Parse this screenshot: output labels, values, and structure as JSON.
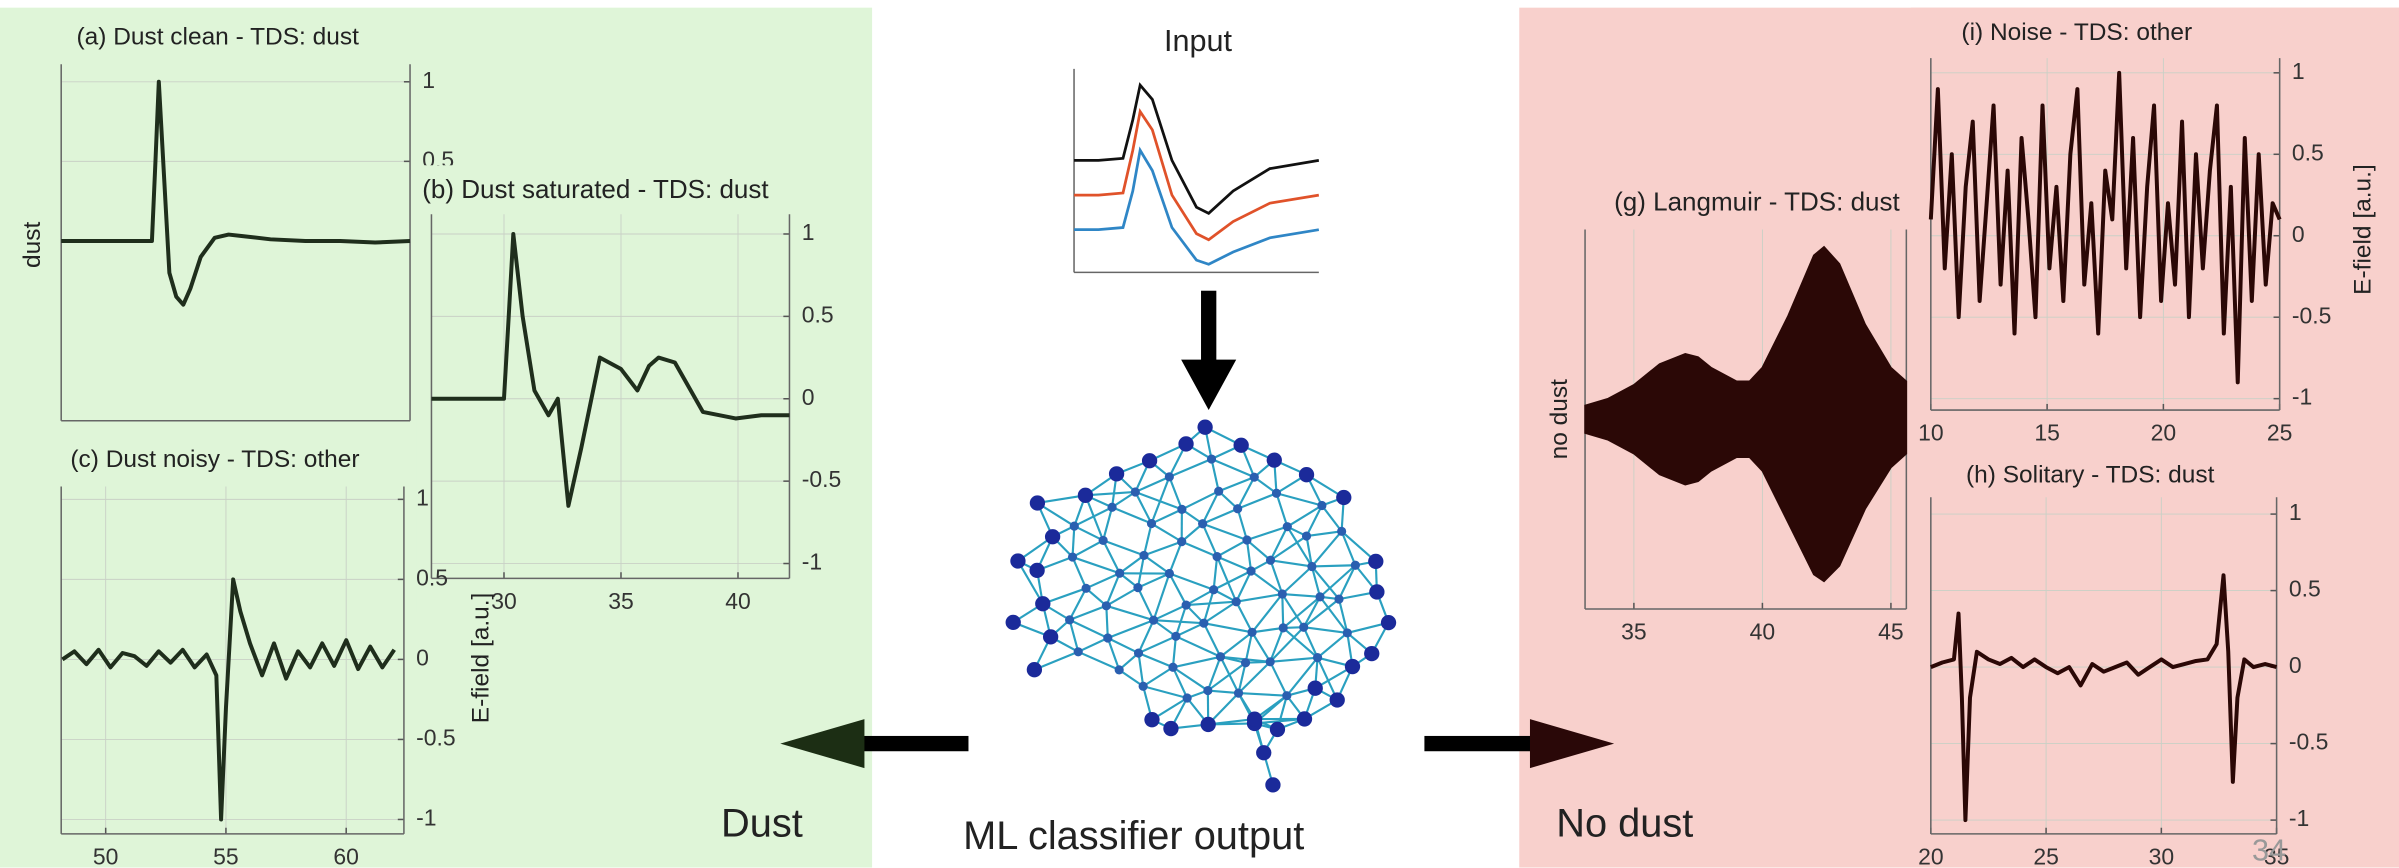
{
  "labels": {
    "dust": "Dust",
    "no_dust": "No dust",
    "classifier": "ML classifier output",
    "page_number": "34"
  },
  "chart_data": [
    {
      "type": "line",
      "title": "Input",
      "x": [
        0,
        1,
        2,
        2.4,
        2.7,
        3.2,
        4,
        5,
        5.5,
        6.5,
        8,
        10
      ],
      "xlim": [
        0,
        10
      ],
      "ylim": [
        0,
        10
      ],
      "series": [
        {
          "color": "#111111",
          "values": [
            5.5,
            5.5,
            5.6,
            7.5,
            9.2,
            8.5,
            5.5,
            3.2,
            2.9,
            4.0,
            5.1,
            5.5
          ]
        },
        {
          "color": "#e0522a",
          "values": [
            3.8,
            3.8,
            3.9,
            6,
            7.9,
            7,
            3.8,
            1.9,
            1.6,
            2.5,
            3.4,
            3.8
          ]
        },
        {
          "color": "#2f86c6",
          "values": [
            2.1,
            2.1,
            2.2,
            4,
            6,
            5,
            2.2,
            0.6,
            0.4,
            1,
            1.7,
            2.1
          ]
        }
      ]
    },
    {
      "type": "line",
      "title": "(a) Dust clean - TDS: dust",
      "ylabel": "dust",
      "color": "#1f2e1c",
      "x": [
        0,
        10,
        20,
        26,
        27,
        28,
        29,
        31,
        33,
        35,
        37,
        40,
        44,
        48,
        52,
        60,
        70,
        80,
        90,
        100
      ],
      "values": [
        0,
        0,
        0,
        0,
        0.5,
        1,
        0.6,
        -0.2,
        -0.35,
        -0.4,
        -0.3,
        -0.1,
        0.02,
        0.04,
        0.03,
        0.01,
        0,
        0,
        -0.01,
        0
      ],
      "xlim": [
        0,
        100
      ],
      "ylim": [
        -1.13,
        1.11
      ],
      "yticks": [
        0.5,
        1
      ],
      "grid": true
    },
    {
      "type": "line",
      "title": "(b) Dust saturated - TDS: dust",
      "color": "#1f2e1c",
      "x": [
        26.9,
        28,
        30,
        30.2,
        30.4,
        30.8,
        31.3,
        31.9,
        32.3,
        32.75,
        33.3,
        34.1,
        35,
        35.7,
        36.2,
        36.6,
        37.3,
        38.5,
        39.9,
        41,
        42.2
      ],
      "values": [
        0,
        0,
        0,
        0.5,
        1,
        0.5,
        0.05,
        -0.1,
        0,
        -0.65,
        -0.3,
        0.25,
        0.18,
        0.05,
        0.2,
        0.25,
        0.22,
        -0.08,
        -0.12,
        -0.1,
        -0.1
      ],
      "xlim": [
        26.9,
        42.2
      ],
      "ylim": [
        -1.09,
        1.12
      ],
      "xticks": [
        30,
        35,
        40
      ],
      "yticks": [
        -1,
        -0.5,
        0,
        0.5,
        1
      ],
      "grid": true
    },
    {
      "type": "line",
      "title": "(c) Dust noisy - TDS: other",
      "ylabel": "E-field [a.u.]",
      "color": "#1f2e1c",
      "x": [
        48.2,
        48.7,
        49.2,
        49.7,
        50.2,
        50.7,
        51.2,
        51.7,
        52.2,
        52.7,
        53.2,
        53.7,
        54.2,
        54.6,
        54.8,
        55.0,
        55.3,
        55.6,
        56.0,
        56.5,
        57.0,
        57.5,
        58.0,
        58.5,
        59.0,
        59.5,
        60.0,
        60.5,
        61.0,
        61.5,
        62.0
      ],
      "values": [
        0,
        0.05,
        -0.03,
        0.06,
        -0.05,
        0.04,
        0.02,
        -0.04,
        0.05,
        -0.02,
        0.06,
        -0.05,
        0.03,
        -0.1,
        -1,
        -0.3,
        0.5,
        0.3,
        0.1,
        -0.1,
        0.1,
        -0.12,
        0.05,
        -0.05,
        0.1,
        -0.04,
        0.12,
        -0.06,
        0.08,
        -0.05,
        0.06
      ],
      "xlim": [
        48.15,
        62.4
      ],
      "ylim": [
        -1.09,
        1.08
      ],
      "xticks": [
        50,
        55,
        60
      ],
      "yticks": [
        -1,
        -0.5,
        0,
        0.5,
        1
      ],
      "grid": true
    },
    {
      "type": "band",
      "title": "(g) Langmuir - TDS: dust",
      "ylabel": "no dust",
      "color": "#2b0806",
      "x": [
        33.1,
        34,
        35,
        36,
        37,
        37.5,
        38,
        39,
        39.5,
        40,
        41,
        42,
        42.4,
        43,
        44,
        45,
        45.6
      ],
      "values": [
        0.08,
        0.12,
        0.2,
        0.32,
        0.38,
        0.36,
        0.3,
        0.22,
        0.22,
        0.3,
        0.6,
        0.95,
        1.0,
        0.9,
        0.55,
        0.3,
        0.22
      ],
      "low": [
        -0.08,
        -0.12,
        -0.2,
        -0.32,
        -0.38,
        -0.36,
        -0.3,
        -0.22,
        -0.22,
        -0.3,
        -0.6,
        -0.9,
        -0.94,
        -0.85,
        -0.52,
        -0.28,
        -0.2
      ],
      "xlim": [
        33.1,
        45.6
      ],
      "ylim": [
        -1.1,
        1.1
      ],
      "xticks": [
        35,
        40,
        45
      ],
      "grid": true
    },
    {
      "type": "line",
      "title": "(i) Noise - TDS: other",
      "ylabel": "E-field [a.u.]",
      "color": "#2b0806",
      "x": [
        10,
        10.3,
        10.6,
        10.9,
        11.2,
        11.5,
        11.8,
        12.1,
        12.4,
        12.7,
        13,
        13.3,
        13.6,
        13.9,
        14.2,
        14.5,
        14.8,
        15.1,
        15.4,
        15.7,
        16,
        16.3,
        16.6,
        16.9,
        17.2,
        17.5,
        17.8,
        18.1,
        18.4,
        18.7,
        19,
        19.3,
        19.6,
        19.9,
        20.2,
        20.5,
        20.8,
        21.1,
        21.4,
        21.7,
        22,
        22.3,
        22.6,
        22.9,
        23.2,
        23.5,
        23.8,
        24.1,
        24.4,
        24.7,
        25
      ],
      "values": [
        0.1,
        0.9,
        -0.2,
        0.5,
        -0.5,
        0.3,
        0.7,
        -0.4,
        0.2,
        0.8,
        -0.3,
        0.4,
        -0.6,
        0.6,
        0.1,
        -0.5,
        0.8,
        -0.2,
        0.3,
        -0.4,
        0.5,
        0.9,
        -0.3,
        0.2,
        -0.6,
        0.4,
        0.1,
        1.0,
        -0.2,
        0.6,
        -0.5,
        0.3,
        0.8,
        -0.4,
        0.2,
        -0.3,
        0.7,
        -0.5,
        0.5,
        -0.2,
        0.4,
        0.8,
        -0.6,
        0.3,
        -0.9,
        0.6,
        -0.4,
        0.5,
        -0.3,
        0.2,
        0.1
      ],
      "xlim": [
        10,
        25
      ],
      "ylim": [
        -1.07,
        1.09
      ],
      "xticks": [
        10,
        15,
        20,
        25
      ],
      "yticks": [
        -1,
        -0.5,
        0,
        0.5,
        1
      ],
      "grid": true
    },
    {
      "type": "line",
      "title": "(h) Solitary - TDS: dust",
      "color": "#2b0806",
      "x": [
        20,
        20.5,
        21,
        21.2,
        21.35,
        21.5,
        21.7,
        22,
        22.5,
        23,
        23.5,
        24,
        24.5,
        25,
        25.5,
        26,
        26.5,
        27,
        27.5,
        28,
        28.5,
        29,
        29.5,
        30,
        30.5,
        31,
        31.5,
        32,
        32.4,
        32.7,
        32.9,
        33.1,
        33.3,
        33.6,
        34,
        34.5,
        35
      ],
      "values": [
        0,
        0.03,
        0.05,
        0.35,
        -0.2,
        -1,
        -0.2,
        0.1,
        0.05,
        0.02,
        0.06,
        0,
        0.05,
        0,
        -0.04,
        0,
        -0.12,
        0.02,
        -0.03,
        0,
        0.03,
        -0.05,
        0,
        0.05,
        0,
        0.02,
        0.04,
        0.05,
        0.15,
        0.6,
        0.1,
        -0.75,
        -0.2,
        0.05,
        0,
        0.02,
        0
      ],
      "xlim": [
        20,
        35
      ],
      "ylim": [
        -1.09,
        1.11
      ],
      "xticks": [
        20,
        25,
        30,
        35
      ],
      "yticks": [
        -1,
        -0.5,
        0,
        0.5,
        1
      ],
      "grid": true
    }
  ]
}
